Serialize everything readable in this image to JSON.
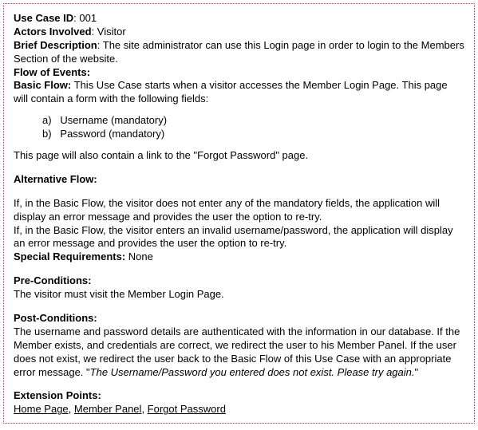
{
  "title_fontsize": 13,
  "border_color": "#cc3366",
  "text_color": "#000000",
  "background_color": "#ffffff",
  "useCaseId": {
    "label": "Use Case ID",
    "value": "001"
  },
  "actors": {
    "label": "Actors Involved",
    "value": "Visitor"
  },
  "briefDesc": {
    "label": "Brief Description",
    "value": "The site administrator can use this Login page in order to login to the Members Section of the website."
  },
  "flowOfEvents": {
    "label": "Flow of Events:"
  },
  "basicFlow": {
    "label": "Basic Flow:",
    "text": "This Use Case starts when a visitor accesses the Member Login Page. This page will contain a form with the following fields:"
  },
  "fields": [
    {
      "marker": "a)",
      "text": "Username (mandatory)"
    },
    {
      "marker": "b)",
      "text": "Password (mandatory)"
    }
  ],
  "basicFlowNote": "This page will also contain a link to the \"Forgot Password\" page.",
  "altFlow": {
    "label": "Alternative Flow:",
    "line1": "If, in the Basic Flow, the visitor does not enter any of the mandatory fields, the application will display an error message and provides the user the option to re-try.",
    "line2": "If, in the Basic Flow, the visitor enters an invalid username/password, the application will display an error message and provides the user the option to re-try."
  },
  "specialReq": {
    "label": "Special Requirements:",
    "value": "None"
  },
  "preCond": {
    "label": "Pre-Conditions:",
    "text": "The visitor must visit the Member Login Page."
  },
  "postCond": {
    "label": "Post-Conditions:",
    "text": "The username and password details are authenticated with the information in our database. If the Member exists, and credentials are correct, we redirect the user to his Member Panel. If the user does not exist, we redirect the user back to the Basic Flow of this Use Case with an appropriate error message. \"",
    "italic": "The Username/Password you entered does not exist. Please try again.",
    "close": "\""
  },
  "extPoints": {
    "label": "Extension Points:",
    "links": [
      "Home Page",
      "Member Panel",
      "Forgot Password"
    ]
  }
}
